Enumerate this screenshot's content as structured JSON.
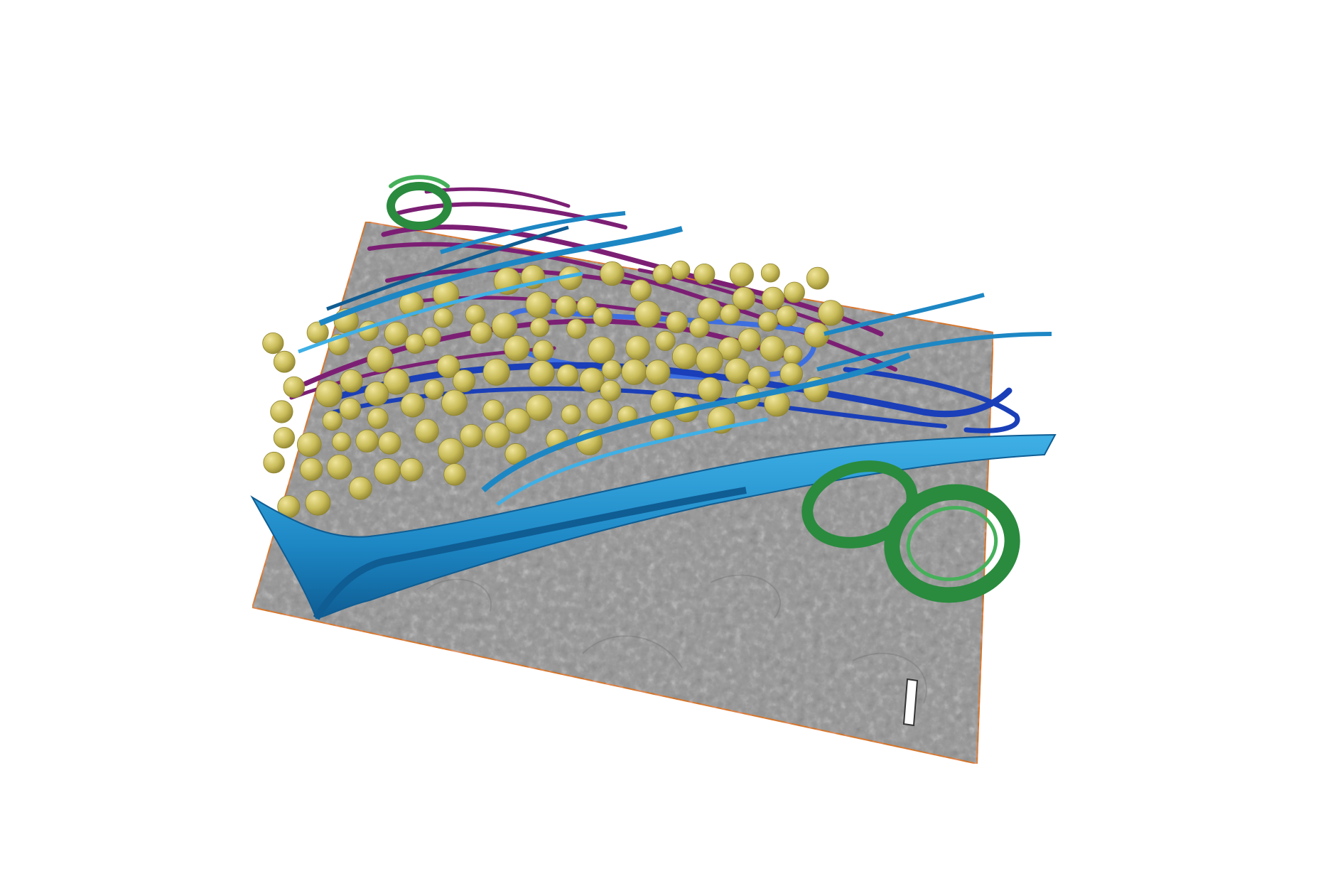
{
  "scene": {
    "background": "#ffffff",
    "slab": {
      "fill": "#9a9a9a",
      "texture_light": "#c4c4c4",
      "texture_dark": "#6e6e6e",
      "edge_color": "#d9782a"
    },
    "vesicles": {
      "color": "#c9bc5a",
      "highlight": "#efe49a",
      "shade": "#8f8330"
    },
    "plasma_membrane": {
      "color": "#1d87c4",
      "dark": "#0f5d93",
      "light": "#3fb0e6"
    },
    "inner_membranes": {
      "color": "#1a3fb8",
      "light": "#3e6fe0"
    },
    "filaments": {
      "color": "#7c1f74",
      "light": "#a2389a"
    },
    "mitochondria": {
      "color": "#2a8a3e",
      "dark": "#186227",
      "light": "#45b05a"
    },
    "scale_bar": {
      "color": "#ffffff",
      "outline": "#333333"
    }
  }
}
